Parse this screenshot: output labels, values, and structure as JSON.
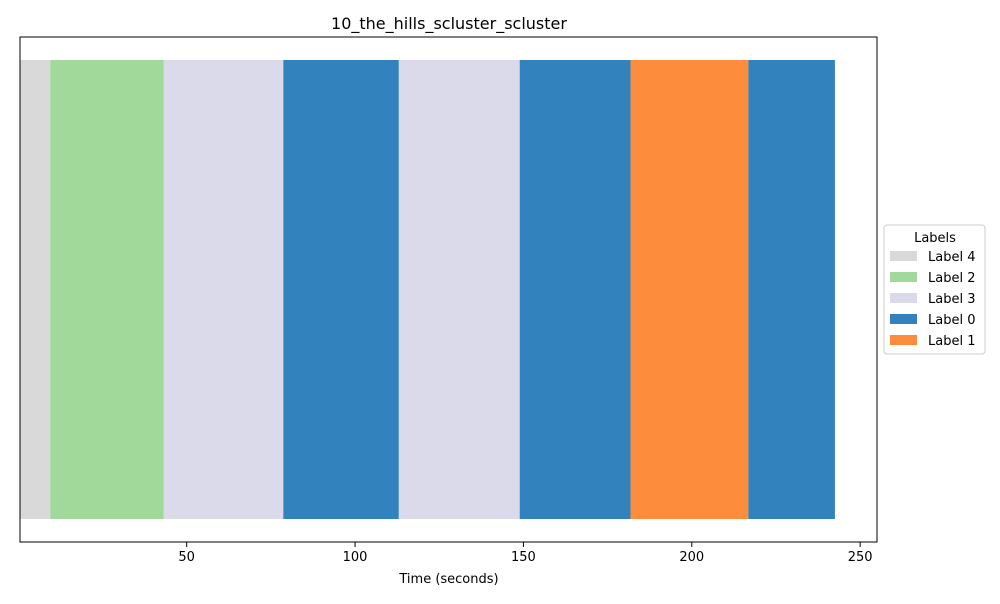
{
  "chart_data": {
    "type": "bar",
    "orientation": "horizontal-timeline",
    "title": "10_the_hills_scluster_scluster",
    "xlabel": "Time (seconds)",
    "ylabel": "",
    "xlim": [
      0.5,
      255
    ],
    "x_ticks": [
      50,
      100,
      150,
      200,
      250
    ],
    "grid": false,
    "legend_placement": "right",
    "legend": {
      "title": "Labels",
      "entries": [
        {
          "name": "Label 4",
          "color": "#d9d9d9"
        },
        {
          "name": "Label 2",
          "color": "#a1d99b"
        },
        {
          "name": "Label 3",
          "color": "#dadaeb"
        },
        {
          "name": "Label 0",
          "color": "#3182bd"
        },
        {
          "name": "Label 1",
          "color": "#fd8d3c"
        }
      ]
    },
    "segments": [
      {
        "label": "Label 4",
        "start": 0.5,
        "end": 9.5
      },
      {
        "label": "Label 2",
        "start": 9.5,
        "end": 43.2
      },
      {
        "label": "Label 3",
        "start": 43.2,
        "end": 78.7
      },
      {
        "label": "Label 0",
        "start": 78.7,
        "end": 113.0
      },
      {
        "label": "Label 3",
        "start": 113.0,
        "end": 148.9
      },
      {
        "label": "Label 0",
        "start": 148.9,
        "end": 181.8
      },
      {
        "label": "Label 1",
        "start": 181.8,
        "end": 216.8
      },
      {
        "label": "Label 0",
        "start": 216.8,
        "end": 242.5
      }
    ]
  }
}
